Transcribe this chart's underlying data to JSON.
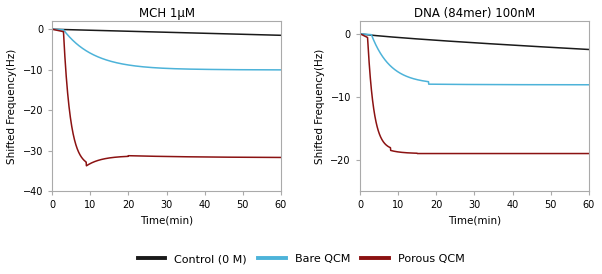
{
  "title_left": "MCH 1μM",
  "title_right": "DNA (84mer) 100nM",
  "xlabel": "Time(min)",
  "ylabel": "Shifted Frequency(Hz)",
  "xlim": [
    0,
    60
  ],
  "ylim_left": [
    -40,
    2
  ],
  "ylim_right": [
    -25,
    2
  ],
  "yticks_left": [
    0,
    -10,
    -20,
    -30,
    -40
  ],
  "yticks_right": [
    0,
    -10,
    -20
  ],
  "xticks": [
    0,
    10,
    20,
    30,
    40,
    50,
    60
  ],
  "colors": {
    "control": "#1a1a1a",
    "bare": "#4db3d9",
    "porous": "#8b1212"
  },
  "legend_labels": [
    "Control (0 M)",
    "Bare QCM",
    "Porous QCM"
  ],
  "background_color": "#ffffff",
  "spine_color": "#aaaaaa"
}
